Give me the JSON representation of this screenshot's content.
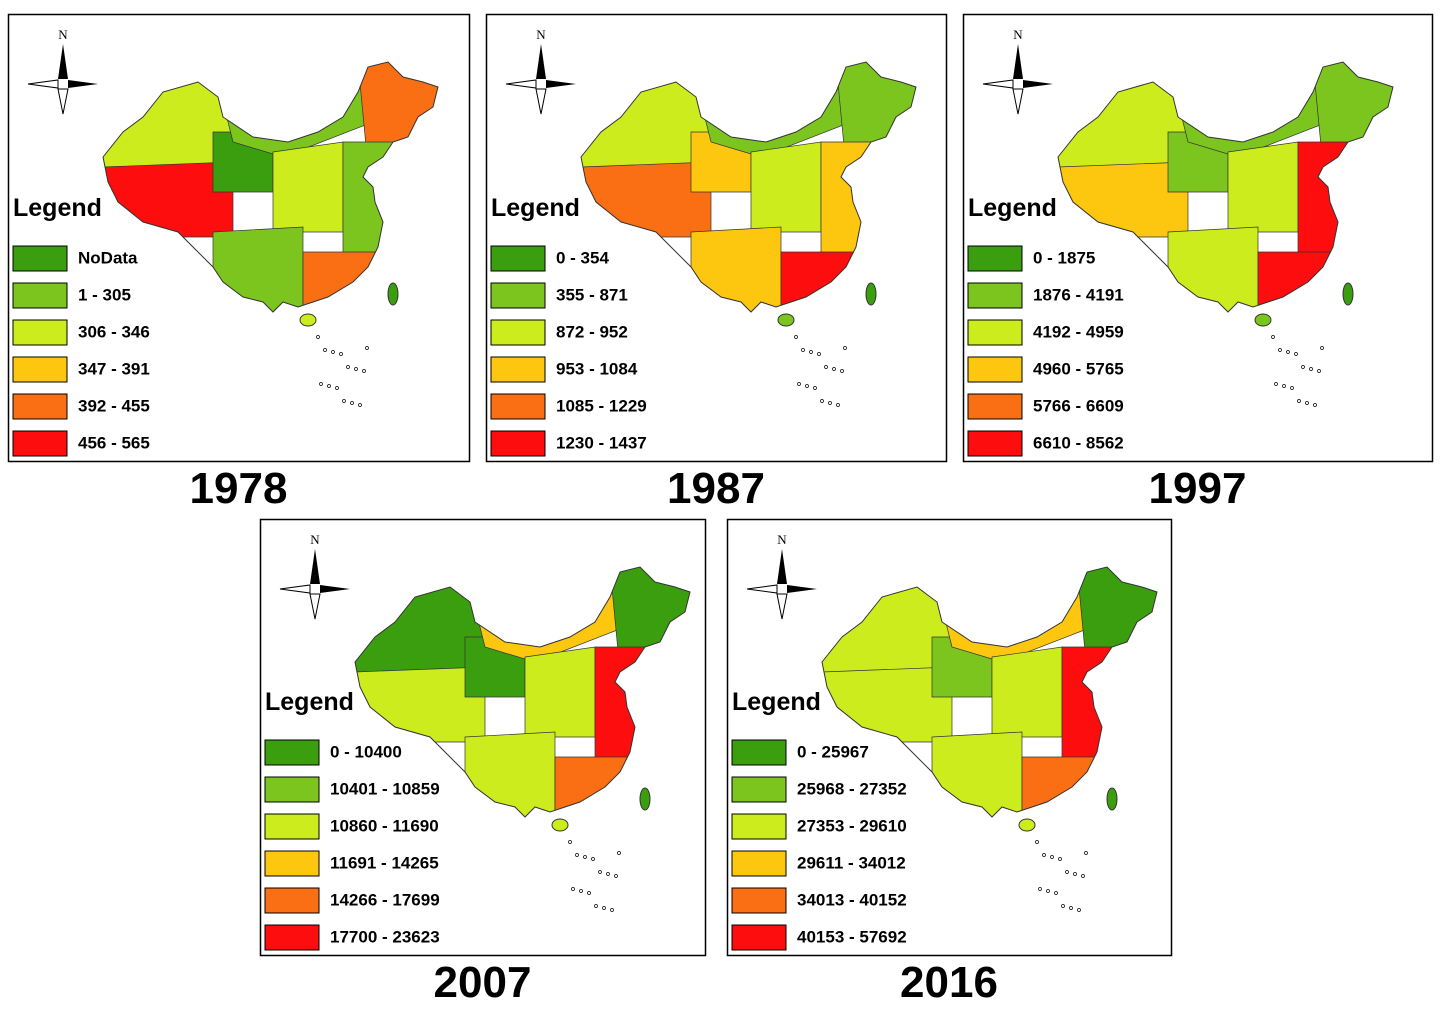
{
  "class_colors": [
    "#3a9e0f",
    "#7cc51e",
    "#cdec1e",
    "#fdc60f",
    "#fa6e14",
    "#fd0d0d"
  ],
  "maps": [
    {
      "year": "1978",
      "north": "N",
      "legend_title": "Legend",
      "legend": [
        "NoData",
        "1 - 305",
        "306 - 346",
        "347 - 391",
        "392 - 455",
        "456 - 565"
      ]
    },
    {
      "year": "1987",
      "north": "N",
      "legend_title": "Legend",
      "legend": [
        "0 - 354",
        "355 - 871",
        "872 - 952",
        "953 - 1084",
        "1085 - 1229",
        "1230 - 1437"
      ]
    },
    {
      "year": "1997",
      "north": "N",
      "legend_title": "Legend",
      "legend": [
        "0 - 1875",
        "1876 - 4191",
        "4192 - 4959",
        "4960 - 5765",
        "5766 - 6609",
        "6610 - 8562"
      ]
    },
    {
      "year": "2007",
      "north": "N",
      "legend_title": "Legend",
      "legend": [
        "0 - 10400",
        "10401 - 10859",
        "10860 - 11690",
        "11691 - 14265",
        "14266 - 17699",
        "17700 - 23623"
      ]
    },
    {
      "year": "2016",
      "north": "N",
      "legend_title": "Legend",
      "legend": [
        "0 - 25967",
        "25968 - 27352",
        "27353 - 29610",
        "29611 - 34012",
        "34013 - 40152",
        "40153 - 57692"
      ]
    }
  ]
}
